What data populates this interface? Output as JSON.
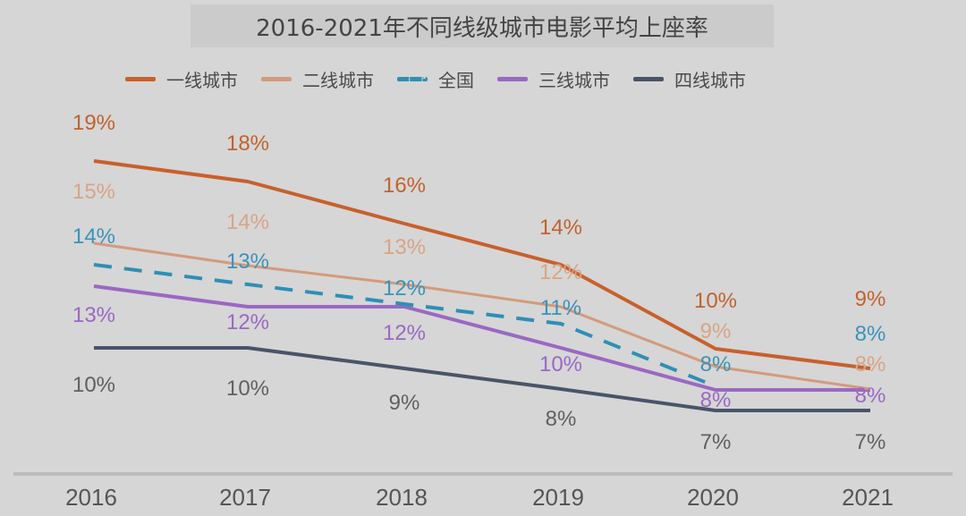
{
  "chart_data": {
    "type": "line",
    "title": "2016-2021年不同线级城市电影平均上座率",
    "categories": [
      "2016",
      "2017",
      "2018",
      "2019",
      "2020",
      "2021"
    ],
    "xlabel": "",
    "ylabel": "",
    "ylim": [
      6,
      20
    ],
    "grid": false,
    "legend_position": "top",
    "series": [
      {
        "name": "一线城市",
        "color": "#c8602c",
        "dashed": false,
        "values": [
          19,
          18,
          16,
          14,
          10,
          9
        ],
        "labels": [
          "19%",
          "18%",
          "16%",
          "14%",
          "10%",
          "9%"
        ]
      },
      {
        "name": "二线城市",
        "color": "#d49a7c",
        "dashed": false,
        "values": [
          15,
          14,
          13,
          12,
          9,
          8
        ],
        "labels": [
          "15%",
          "14%",
          "13%",
          "12%",
          "9%",
          "8%"
        ]
      },
      {
        "name": "全国",
        "color": "#2e8fb5",
        "dashed": true,
        "values": [
          14,
          13,
          12,
          11,
          8,
          8
        ],
        "labels": [
          "14%",
          "13%",
          "12%",
          "11%",
          "8%",
          "8%"
        ]
      },
      {
        "name": "三线城市",
        "color": "#9a68c4",
        "dashed": false,
        "values": [
          13,
          12,
          12,
          10,
          8,
          8
        ],
        "labels": [
          "13%",
          "12%",
          "12%",
          "10%",
          "8%",
          "8%"
        ]
      },
      {
        "name": "四线城市",
        "color": "#4a5468",
        "dashed": false,
        "values": [
          10,
          10,
          9,
          8,
          7,
          7
        ],
        "labels": [
          "10%",
          "10%",
          "9%",
          "8%",
          "7%",
          "7%"
        ]
      }
    ]
  }
}
